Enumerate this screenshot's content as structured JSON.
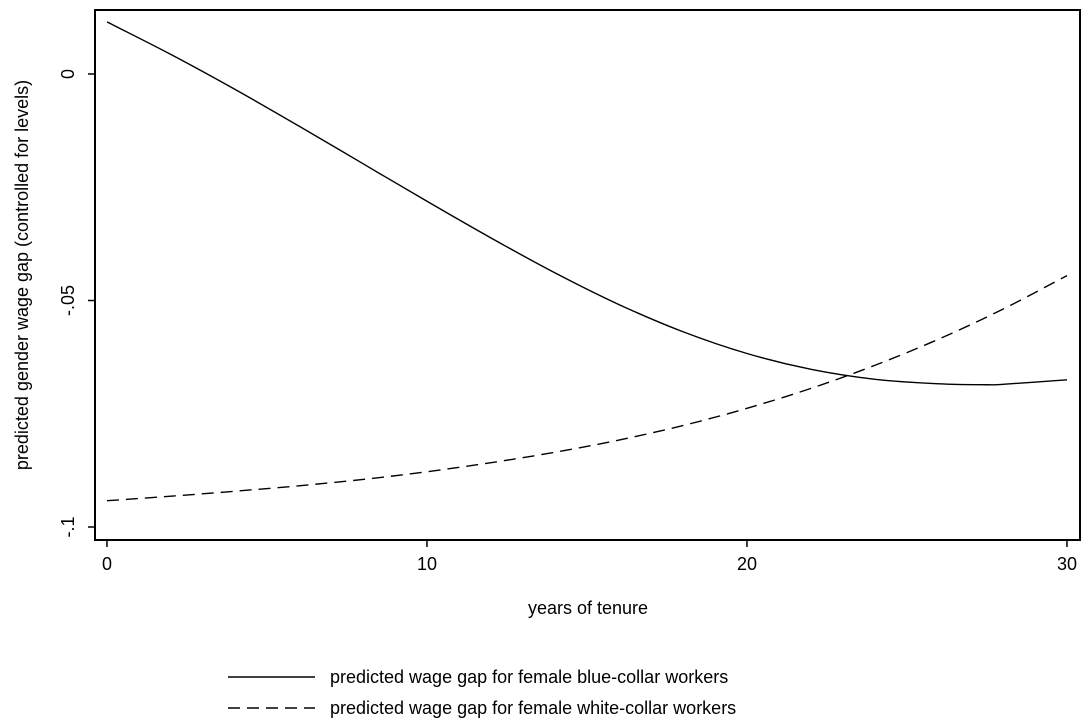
{
  "chart_data": {
    "type": "line",
    "title": "",
    "xlabel": "years of tenure",
    "ylabel": "predicted gender wage gap (controlled for levels)",
    "xlim": [
      0,
      30
    ],
    "ylim": [
      -0.1,
      0.0
    ],
    "x_ticks": [
      0,
      10,
      20,
      30
    ],
    "x_tick_labels": [
      "0",
      "10",
      "20",
      "30"
    ],
    "y_ticks": [
      0,
      -0.05,
      -0.1
    ],
    "y_tick_labels": [
      "0",
      "-.05",
      "-.1"
    ],
    "grid": false,
    "legend_position": "bottom",
    "series": [
      {
        "name": "predicted wage gap for female blue-collar workers",
        "line_style": "solid",
        "color": "#000000",
        "x": [
          0,
          2,
          4,
          6,
          8,
          10,
          12,
          14,
          16,
          18,
          20,
          22,
          24,
          26,
          27.5,
          28,
          30
        ],
        "y": [
          0.0115,
          0.0043,
          -0.0034,
          -0.0115,
          -0.0198,
          -0.0281,
          -0.0362,
          -0.0439,
          -0.0509,
          -0.0569,
          -0.0617,
          -0.0652,
          -0.0674,
          -0.0684,
          -0.0686,
          -0.0685,
          -0.0675
        ]
      },
      {
        "name": "predicted wage gap for female white-collar workers",
        "line_style": "dashed",
        "color": "#000000",
        "x": [
          0,
          2,
          4,
          6,
          8,
          10,
          12,
          14,
          16,
          18,
          20,
          22,
          24,
          26,
          28,
          30
        ],
        "y": [
          -0.0942,
          -0.0932,
          -0.0921,
          -0.0909,
          -0.0895,
          -0.0878,
          -0.0858,
          -0.0835,
          -0.0808,
          -0.0776,
          -0.0738,
          -0.0694,
          -0.0643,
          -0.0585,
          -0.0519,
          -0.0445
        ]
      }
    ]
  }
}
